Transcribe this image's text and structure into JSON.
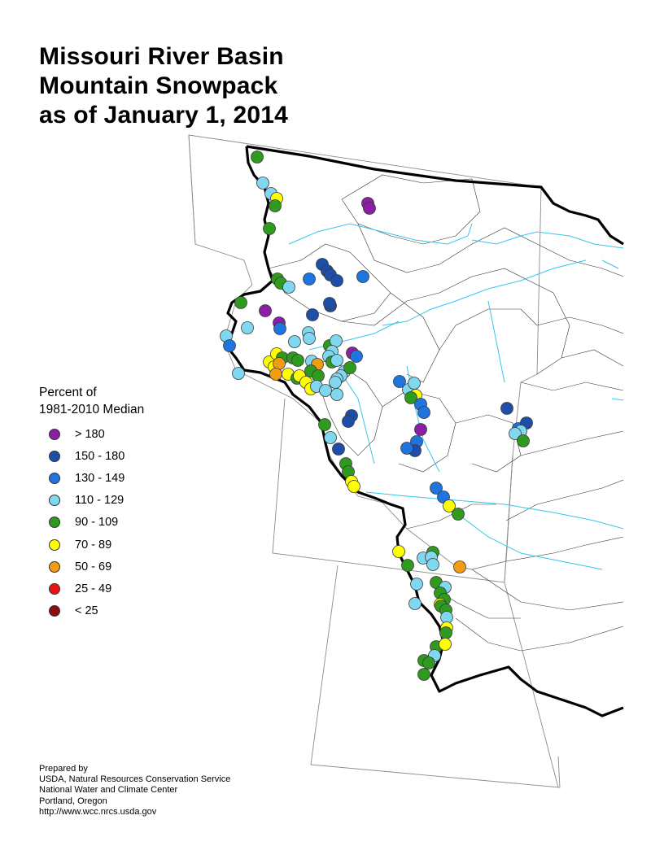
{
  "title": {
    "line1": "Missouri River Basin",
    "line2": "Mountain Snowpack",
    "line3": "as of January 1, 2014"
  },
  "legend": {
    "title_line1": "Percent of",
    "title_line2": "1981-2010 Median",
    "items": [
      {
        "label": "> 180",
        "color": "#8a1fa6"
      },
      {
        "label": "150 - 180",
        "color": "#1d4fa8"
      },
      {
        "label": "130 - 149",
        "color": "#1f75e0"
      },
      {
        "label": "110 - 129",
        "color": "#7fd8f0"
      },
      {
        "label": "90 - 109",
        "color": "#2e9b1e"
      },
      {
        "label": "70 - 89",
        "color": "#ffff00"
      },
      {
        "label": "50 - 69",
        "color": "#f29c11"
      },
      {
        "label": "25 - 49",
        "color": "#ee1111"
      },
      {
        "label": "< 25",
        "color": "#8b0d0d"
      }
    ]
  },
  "credits": {
    "line1": "Prepared by",
    "line2": "USDA, Natural Resources Conservation Service",
    "line3": "National Water and Climate Center",
    "line4": "Portland, Oregon",
    "line5": "http://www.wcc.nrcs.usda.gov"
  }
}
